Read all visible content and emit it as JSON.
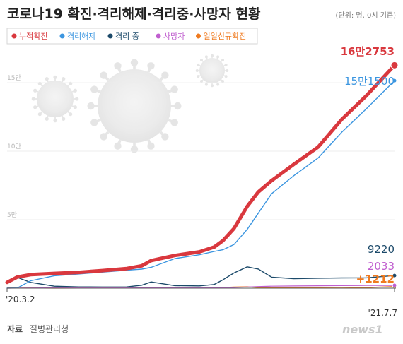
{
  "header": {
    "title": "코로나19 확진·격리해제·격리중·사망자 현황",
    "unit_note": "(단위: 명, 0시 기준)"
  },
  "footer": {
    "source_label": "자료",
    "source_value": "질병관리청",
    "brand": "news1"
  },
  "colors": {
    "confirmed": "#d9383e",
    "released": "#3c96e0",
    "isolated": "#1c4a6a",
    "deaths": "#c05fcf",
    "daily": "#ef7a1f"
  },
  "chart_data": {
    "type": "line",
    "title": "코로나19 확진·격리해제·격리중·사망자 현황",
    "xlabel": "",
    "ylabel": "",
    "x_start": "'20.3.2",
    "x_end": "'21.7.7",
    "x_range": [
      "2020-03-02",
      "2021-07-07"
    ],
    "ylim": [
      0,
      165000
    ],
    "y_ticks": [
      {
        "value": 50000,
        "label": "5만"
      },
      {
        "value": 100000,
        "label": "10만"
      },
      {
        "value": 150000,
        "label": "15만"
      }
    ],
    "legend_position": "top-left",
    "x": [
      "2020-03-02",
      "2020-03-15",
      "2020-04-01",
      "2020-05-01",
      "2020-06-01",
      "2020-07-01",
      "2020-08-01",
      "2020-08-20",
      "2020-09-01",
      "2020-10-01",
      "2020-11-01",
      "2020-11-20",
      "2020-12-01",
      "2020-12-15",
      "2021-01-01",
      "2021-01-15",
      "2021-02-01",
      "2021-03-01",
      "2021-04-01",
      "2021-05-01",
      "2021-06-01",
      "2021-07-07"
    ],
    "series": [
      {
        "name": "누적확진",
        "color": "#d9383e",
        "values": [
          4212,
          8162,
          9887,
          10774,
          11541,
          12850,
          14336,
          16346,
          20182,
          23889,
          26511,
          30017,
          34652,
          43484,
          59773,
          70212,
          78508,
          90372,
          103088,
          123240,
          140340,
          162753
        ],
        "end_label": "16만2753"
      },
      {
        "name": "격리해제",
        "color": "#3c96e0",
        "values": [
          30,
          150,
          5408,
          9072,
          10340,
          11684,
          13133,
          13901,
          15198,
          21590,
          24395,
          26825,
          28065,
          31814,
          42953,
          54779,
          68966,
          82081,
          95093,
          113917,
          130823,
          151500
        ],
        "end_label": "15만1500"
      },
      {
        "name": "격리 중",
        "color": "#1c4a6a",
        "values": [
          4150,
          7800,
          4216,
          1454,
          927,
          882,
          909,
          2150,
          4525,
          1875,
          1633,
          2706,
          6099,
          11109,
          15552,
          13948,
          8040,
          6953,
          7259,
          7466,
          7504,
          9220
        ],
        "end_label": "9220"
      },
      {
        "name": "사망자",
        "color": "#c05fcf",
        "values": [
          22,
          75,
          165,
          248,
          273,
          282,
          301,
          304,
          334,
          424,
          476,
          497,
          526,
          575,
          879,
          1185,
          1420,
          1605,
          1746,
          1833,
          1959,
          2033
        ],
        "end_label": "2033"
      },
      {
        "name": "일일신규확진",
        "color": "#ef7a1f",
        "values": [
          686,
          76,
          101,
          9,
          38,
          51,
          31,
          288,
          235,
          77,
          124,
          363,
          451,
          880,
          1029,
          513,
          467,
          344,
          551,
          627,
          459,
          1212
        ],
        "end_label": "+1212"
      }
    ]
  }
}
